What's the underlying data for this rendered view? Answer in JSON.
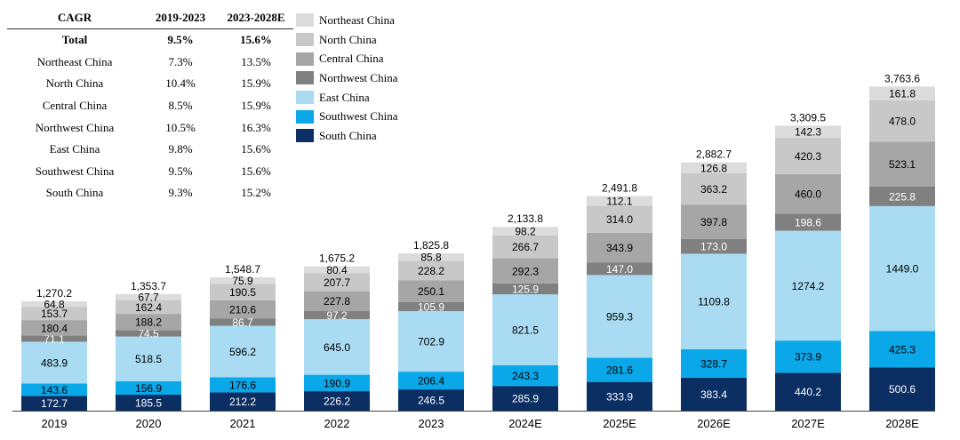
{
  "cagr_table": {
    "headers": [
      "CAGR",
      "2019-2023",
      "2023-2028E"
    ],
    "rows": [
      [
        "Total",
        "9.5%",
        "15.6%"
      ],
      [
        "Northeast China",
        "7.3%",
        "13.5%"
      ],
      [
        "North China",
        "10.4%",
        "15.9%"
      ],
      [
        "Central China",
        "8.5%",
        "15.9%"
      ],
      [
        "Northwest China",
        "10.5%",
        "16.3%"
      ],
      [
        "East China",
        "9.8%",
        "15.6%"
      ],
      [
        "Southwest China",
        "9.5%",
        "15.6%"
      ],
      [
        "South China",
        "9.3%",
        "15.2%"
      ]
    ]
  },
  "chart_data": {
    "type": "bar",
    "stacked": true,
    "categories": [
      "2019",
      "2020",
      "2021",
      "2022",
      "2023",
      "2024E",
      "2025E",
      "2026E",
      "2027E",
      "2028E"
    ],
    "totals": [
      "1,270.2",
      "1,353.7",
      "1,548.7",
      "1,675.2",
      "1,825.8",
      "2,133.8",
      "2,491.8",
      "2,882.7",
      "3,309.5",
      "3,763.6"
    ],
    "series": [
      {
        "name": "South China",
        "color": "#0b2e63",
        "values": [
          172.7,
          185.5,
          212.2,
          226.2,
          246.5,
          285.9,
          333.9,
          383.4,
          440.2,
          500.6
        ]
      },
      {
        "name": "Southwest China",
        "color": "#0aa8e8",
        "values": [
          143.6,
          156.9,
          176.6,
          190.9,
          206.4,
          243.3,
          281.6,
          328.7,
          373.9,
          425.3
        ]
      },
      {
        "name": "East China",
        "color": "#a9dcf2",
        "values": [
          483.9,
          518.5,
          596.2,
          645.0,
          702.9,
          821.5,
          959.3,
          1109.8,
          1274.2,
          1449.0
        ]
      },
      {
        "name": "Northwest China",
        "color": "#808080",
        "values": [
          71.1,
          74.5,
          86.7,
          97.2,
          105.9,
          125.9,
          147.0,
          173.0,
          198.6,
          225.8
        ]
      },
      {
        "name": "Central China",
        "color": "#a6a6a6",
        "values": [
          180.4,
          188.2,
          210.6,
          227.8,
          250.1,
          292.3,
          343.9,
          397.8,
          460.0,
          523.1
        ]
      },
      {
        "name": "North China",
        "color": "#c8c8c8",
        "values": [
          153.7,
          162.4,
          190.5,
          207.7,
          228.2,
          266.7,
          314.0,
          363.2,
          420.3,
          478.0
        ]
      },
      {
        "name": "Northeast China",
        "color": "#dcdcdc",
        "values": [
          64.8,
          67.7,
          75.9,
          80.4,
          85.8,
          98.2,
          112.1,
          126.8,
          142.3,
          161.8
        ]
      }
    ],
    "legend_order": [
      "Northeast China",
      "North China",
      "Central China",
      "Northwest China",
      "East China",
      "Southwest China",
      "South China"
    ],
    "legend_position": "top-left",
    "grid": false
  }
}
